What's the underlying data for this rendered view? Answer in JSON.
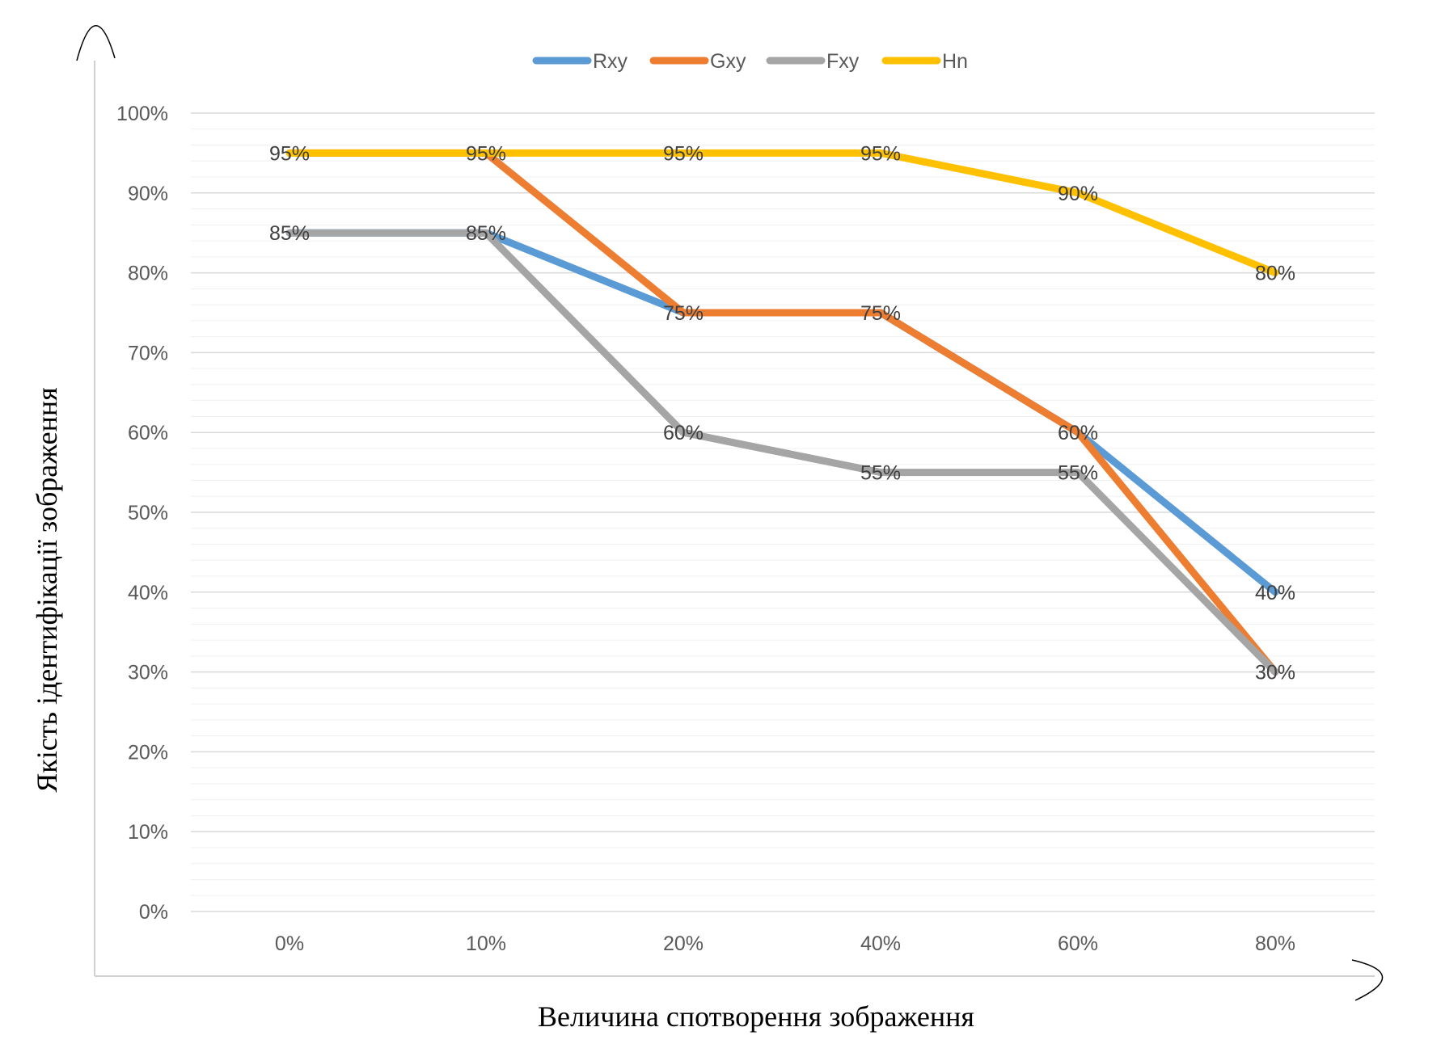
{
  "chart_data": {
    "type": "line",
    "categories": [
      "0%",
      "10%",
      "20%",
      "40%",
      "60%",
      "80%"
    ],
    "series": [
      {
        "name": "Rxy",
        "color": "#5B9BD5",
        "values": [
          85,
          85,
          75,
          75,
          60,
          40
        ],
        "labels": [
          null,
          null,
          null,
          null,
          null,
          "40%"
        ]
      },
      {
        "name": "Gxy",
        "color": "#ED7D31",
        "values": [
          95,
          95,
          75,
          75,
          60,
          30
        ],
        "labels": [
          null,
          null,
          "75%",
          "75%",
          "60%",
          null
        ]
      },
      {
        "name": "Fxy",
        "color": "#A5A5A5",
        "values": [
          85,
          85,
          60,
          55,
          55,
          30
        ],
        "labels": [
          "85%",
          "85%",
          "60%",
          "55%",
          "55%",
          "30%"
        ]
      },
      {
        "name": "Hn",
        "color": "#FFC000",
        "values": [
          95,
          95,
          95,
          95,
          90,
          80
        ],
        "labels": [
          "95%",
          "95%",
          "95%",
          "95%",
          "90%",
          "80%"
        ]
      }
    ],
    "y_ticks": [
      "0%",
      "10%",
      "20%",
      "30%",
      "40%",
      "50%",
      "60%",
      "70%",
      "80%",
      "90%",
      "100%"
    ],
    "ylim": [
      0,
      100
    ],
    "minor_gridline_step": 2,
    "xlabel": "Величина спотворення зображення",
    "ylabel": "Якість ідентифікації зображення",
    "legend_position": "top",
    "grid": true
  }
}
